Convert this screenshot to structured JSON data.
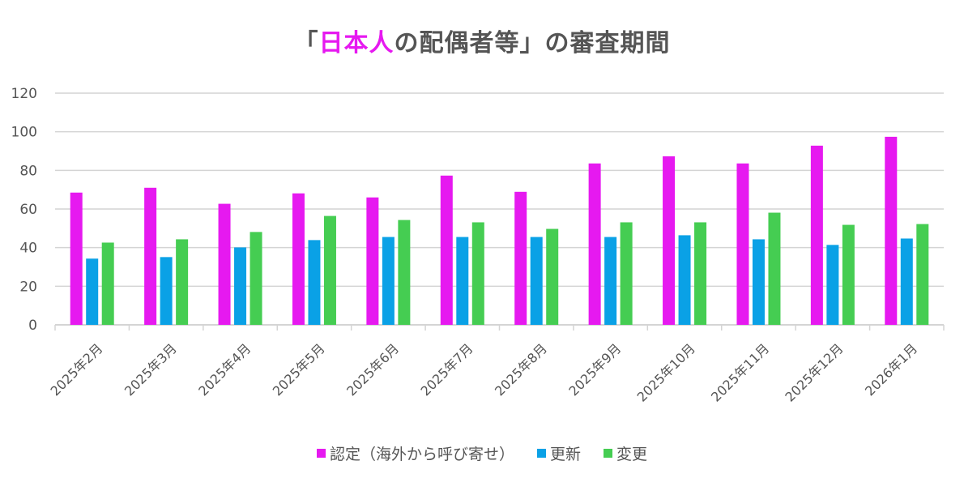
{
  "chart_data": {
    "type": "bar",
    "title": {
      "prefix": "「",
      "highlight": "日本人",
      "suffix": "の配偶者等」の審査期間",
      "highlight_color": "#e619f0"
    },
    "categories": [
      "2025年2月",
      "2025年3月",
      "2025年4月",
      "2025年5月",
      "2025年6月",
      "2025年7月",
      "2025年8月",
      "2025年9月",
      "2025年10月",
      "2025年11月",
      "2025年12月",
      "2026年1月"
    ],
    "series": [
      {
        "name": "認定（海外から呼び寄せ）",
        "color": "#e619f0",
        "values": [
          68.5,
          71.0,
          62.7,
          68.1,
          66.0,
          77.3,
          68.9,
          83.6,
          87.3,
          83.6,
          92.8,
          97.4
        ]
      },
      {
        "name": "更新",
        "color": "#0aa1e6",
        "values": [
          34.3,
          35.1,
          40.1,
          43.9,
          45.5,
          45.5,
          45.5,
          45.5,
          46.4,
          44.3,
          41.4,
          44.7
        ]
      },
      {
        "name": "変更",
        "color": "#45cd52",
        "values": [
          42.6,
          44.3,
          48.1,
          56.4,
          54.3,
          53.1,
          49.7,
          53.1,
          53.1,
          58.1,
          51.8,
          52.2
        ]
      }
    ],
    "ylim": [
      0,
      120
    ],
    "yticks": [
      "0",
      "20",
      "40",
      "60",
      "80",
      "100",
      "120"
    ],
    "grid": true,
    "legend": "bottom"
  }
}
